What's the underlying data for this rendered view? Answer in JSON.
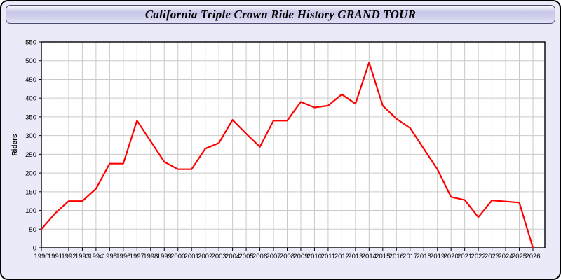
{
  "window": {
    "title": "California Triple Crown Ride History GRAND TOUR"
  },
  "colors": {
    "page_background": "#eaeaf8",
    "outer_border": "#000000",
    "titlebar_border": "#4a4a6e",
    "plot_background": "#ffffff",
    "grid": "#c9c9c9",
    "axis": "#000000",
    "line": "#ff0000",
    "text": "#000000"
  },
  "chart_data": {
    "type": "line",
    "title": "California Triple Crown Ride History GRAND TOUR",
    "xlabel": "",
    "ylabel": "Riders",
    "ylim": [
      0,
      550
    ],
    "ytick_step": 50,
    "grid": true,
    "legend_position": "none",
    "x": [
      1990,
      1991,
      1992,
      1993,
      1994,
      1995,
      1996,
      1997,
      1998,
      1999,
      2000,
      2001,
      2002,
      2003,
      2004,
      2005,
      2006,
      2007,
      2008,
      2009,
      2010,
      2011,
      2012,
      2013,
      2014,
      2015,
      2016,
      2017,
      2018,
      2019,
      2020,
      2021,
      2022,
      2023,
      2024,
      2025,
      2026
    ],
    "series": [
      {
        "name": "Riders",
        "color": "#ff0000",
        "values": [
          50,
          92,
          125,
          125,
          158,
          225,
          225,
          340,
          285,
          230,
          210,
          210,
          265,
          280,
          342,
          305,
          270,
          340,
          340,
          390,
          375,
          380,
          410,
          385,
          495,
          380,
          345,
          320,
          265,
          210,
          136,
          128,
          82,
          127,
          124,
          121,
          0
        ]
      }
    ]
  }
}
